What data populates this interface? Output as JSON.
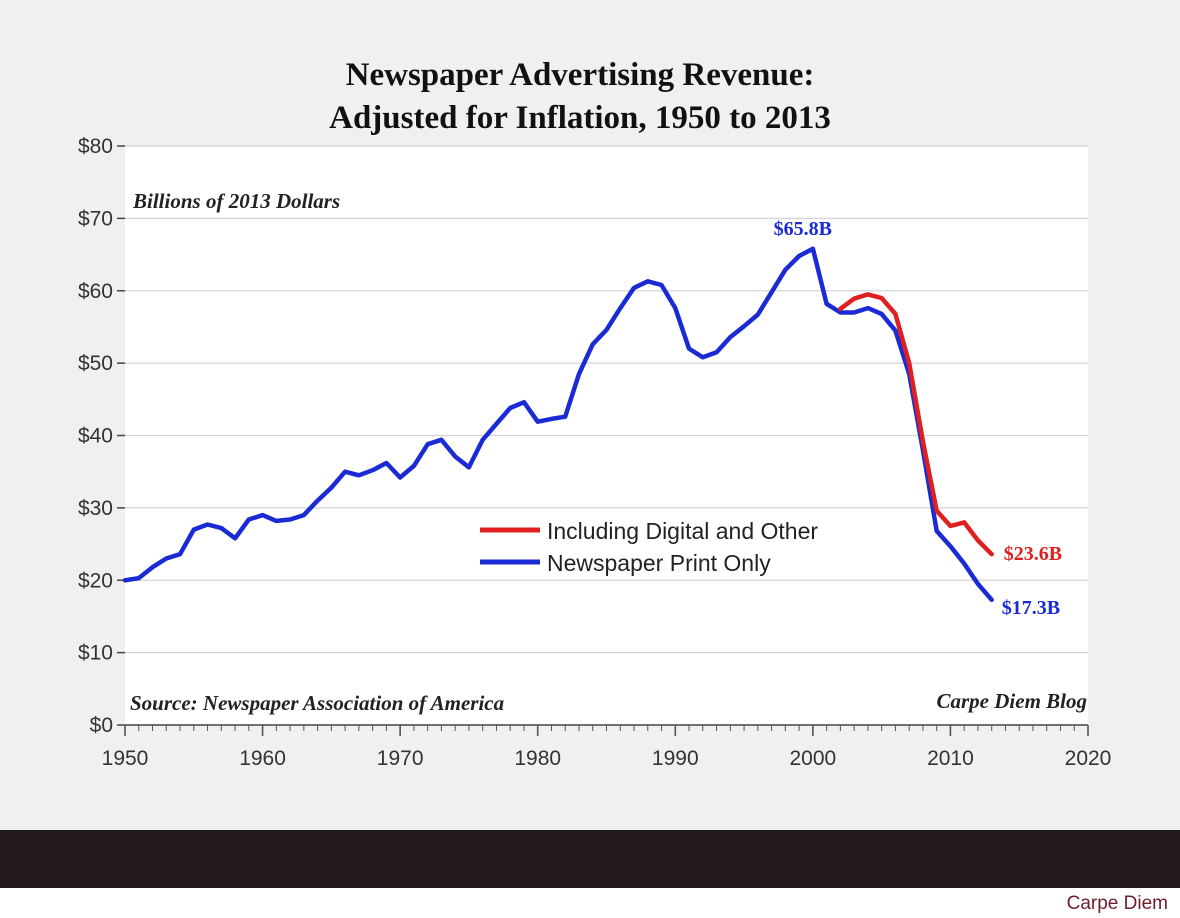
{
  "chart_data": {
    "type": "line",
    "title": [
      "Newspaper Advertising Revenue:",
      "Adjusted for Inflation, 1950 to 2013"
    ],
    "ylabel": "Billions of 2013 Dollars",
    "xlabel": "",
    "xlim": [
      1950,
      2020
    ],
    "ylim": [
      0,
      80
    ],
    "x_ticks": [
      "1950",
      "1960",
      "1970",
      "1980",
      "1990",
      "2000",
      "2010",
      "2020"
    ],
    "y_ticks": [
      "$0",
      "$10",
      "$20",
      "$30",
      "$40",
      "$50",
      "$60",
      "$70",
      "$80"
    ],
    "grid": true,
    "series": [
      {
        "name": "Including Digital and Other",
        "color": "#e02020",
        "x": [
          2002,
          2003,
          2004,
          2005,
          2006,
          2007,
          2008,
          2009,
          2010,
          2011,
          2012,
          2013
        ],
        "values": [
          57.5,
          58.9,
          59.5,
          59.0,
          56.8,
          50.0,
          39.2,
          29.6,
          27.5,
          28.0,
          25.5,
          23.6
        ]
      },
      {
        "name": "Newspaper Print Only",
        "color": "#1a2bd6",
        "x": [
          1950,
          1951,
          1952,
          1953,
          1954,
          1955,
          1956,
          1957,
          1958,
          1959,
          1960,
          1961,
          1962,
          1963,
          1964,
          1965,
          1966,
          1967,
          1968,
          1969,
          1970,
          1971,
          1972,
          1973,
          1974,
          1975,
          1976,
          1977,
          1978,
          1979,
          1980,
          1981,
          1982,
          1983,
          1984,
          1985,
          1986,
          1987,
          1988,
          1989,
          1990,
          1991,
          1992,
          1993,
          1994,
          1995,
          1996,
          1997,
          1998,
          1999,
          2000,
          2001,
          2002,
          2003,
          2004,
          2005,
          2006,
          2007,
          2008,
          2009,
          2010,
          2011,
          2012,
          2013
        ],
        "values": [
          20.0,
          20.3,
          21.8,
          23.0,
          23.6,
          27.0,
          27.7,
          27.2,
          25.8,
          28.4,
          29.0,
          28.2,
          28.4,
          29.0,
          31.0,
          32.8,
          35.0,
          34.5,
          35.2,
          36.2,
          34.2,
          35.8,
          38.8,
          39.4,
          37.1,
          35.6,
          39.4,
          41.6,
          43.8,
          44.6,
          41.9,
          42.3,
          42.6,
          48.5,
          52.6,
          54.6,
          57.6,
          60.4,
          61.3,
          60.8,
          57.6,
          52.0,
          50.8,
          51.5,
          53.6,
          55.1,
          56.7,
          59.8,
          62.9,
          64.8,
          65.8,
          58.2,
          57.0,
          57.0,
          57.6,
          56.8,
          54.5,
          48.5,
          38.0,
          26.8,
          24.7,
          22.3,
          19.5,
          17.3
        ]
      }
    ],
    "annotations": {
      "peak": {
        "text": "$65.8B",
        "x": 2000,
        "y": 65.8
      },
      "end_digital": {
        "text": "$23.6B",
        "x": 2013,
        "y": 23.6
      },
      "end_print": {
        "text": "$17.3B",
        "x": 2013,
        "y": 17.3
      }
    },
    "source_note": "Source: Newspaper Association of America",
    "blog_note": "Carpe Diem Blog",
    "legend_position": "center-right"
  },
  "footer": {
    "brand": "Carpe Diem"
  }
}
